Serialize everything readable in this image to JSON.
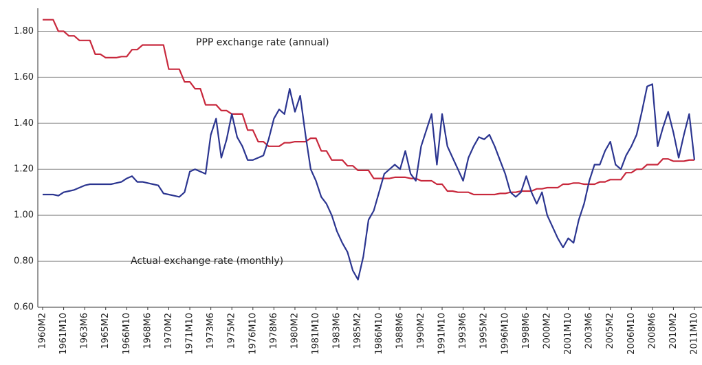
{
  "chart_data": {
    "type": "line",
    "annotations": [
      "PPP exchange rate (annual)",
      "Actual exchange rate (monthly)"
    ],
    "categories": [
      "1960M2",
      null,
      null,
      null,
      "1961M10",
      null,
      null,
      null,
      "1963M6",
      null,
      null,
      null,
      "1965M2",
      null,
      null,
      null,
      "1966M10",
      null,
      null,
      null,
      "1968M6",
      null,
      null,
      null,
      "1970M2",
      null,
      null,
      null,
      "1971M10",
      null,
      null,
      null,
      "1973M6",
      null,
      null,
      null,
      "1975M2",
      null,
      null,
      null,
      "1976M10",
      null,
      null,
      null,
      "1978M6",
      null,
      null,
      null,
      "1980M2",
      null,
      null,
      null,
      "1981M10",
      null,
      null,
      null,
      "1983M6",
      null,
      null,
      null,
      "1985M2",
      null,
      null,
      null,
      "1986M10",
      null,
      null,
      null,
      "1988M6",
      null,
      null,
      null,
      "1990M2",
      null,
      null,
      null,
      "1991M10",
      null,
      null,
      null,
      "1993M6",
      null,
      null,
      null,
      "1995M2",
      null,
      null,
      null,
      "1996M10",
      null,
      null,
      null,
      "1998M6",
      null,
      null,
      null,
      "2000M2",
      null,
      null,
      null,
      "2001M10",
      null,
      null,
      null,
      "2003M6",
      null,
      null,
      null,
      "2005M2",
      null,
      null,
      null,
      "2006M10",
      null,
      null,
      null,
      "2008M6",
      null,
      null,
      null,
      "2010M2",
      null,
      null,
      null,
      "2011M10"
    ],
    "series": [
      {
        "name": "PPP exchange rate (annual)",
        "color": "#c8283c",
        "values": [
          1.85,
          1.85,
          1.85,
          1.8,
          1.8,
          1.78,
          1.78,
          1.76,
          1.76,
          1.76,
          1.7,
          1.7,
          1.685,
          1.685,
          1.685,
          1.69,
          1.69,
          1.72,
          1.72,
          1.74,
          1.74,
          1.74,
          1.74,
          1.74,
          1.635,
          1.635,
          1.635,
          1.58,
          1.58,
          1.55,
          1.55,
          1.48,
          1.48,
          1.48,
          1.455,
          1.455,
          1.44,
          1.44,
          1.44,
          1.37,
          1.37,
          1.32,
          1.32,
          1.3,
          1.3,
          1.3,
          1.315,
          1.315,
          1.32,
          1.32,
          1.32,
          1.335,
          1.335,
          1.28,
          1.28,
          1.24,
          1.24,
          1.24,
          1.215,
          1.215,
          1.195,
          1.195,
          1.195,
          1.16,
          1.16,
          1.16,
          1.16,
          1.165,
          1.165,
          1.165,
          1.16,
          1.16,
          1.15,
          1.15,
          1.15,
          1.135,
          1.135,
          1.105,
          1.105,
          1.1,
          1.1,
          1.1,
          1.09,
          1.09,
          1.09,
          1.09,
          1.09,
          1.095,
          1.095,
          1.1,
          1.1,
          1.105,
          1.105,
          1.105,
          1.115,
          1.115,
          1.12,
          1.12,
          1.12,
          1.135,
          1.135,
          1.14,
          1.14,
          1.135,
          1.135,
          1.135,
          1.145,
          1.145,
          1.155,
          1.155,
          1.155,
          1.185,
          1.185,
          1.2,
          1.2,
          1.22,
          1.22,
          1.22,
          1.245,
          1.245,
          1.235,
          1.235,
          1.235,
          1.24,
          1.24
        ]
      },
      {
        "name": "Actual exchange rate (monthly)",
        "color": "#2b3590",
        "values": [
          1.09,
          1.09,
          1.09,
          1.085,
          1.1,
          1.105,
          1.11,
          1.12,
          1.13,
          1.135,
          1.135,
          1.135,
          1.135,
          1.135,
          1.14,
          1.145,
          1.16,
          1.17,
          1.145,
          1.145,
          1.14,
          1.135,
          1.13,
          1.095,
          1.09,
          1.085,
          1.08,
          1.1,
          1.19,
          1.2,
          1.19,
          1.18,
          1.35,
          1.42,
          1.25,
          1.33,
          1.44,
          1.34,
          1.3,
          1.24,
          1.24,
          1.25,
          1.26,
          1.33,
          1.42,
          1.46,
          1.44,
          1.55,
          1.45,
          1.52,
          1.35,
          1.2,
          1.15,
          1.08,
          1.05,
          1.0,
          0.93,
          0.88,
          0.84,
          0.76,
          0.72,
          0.82,
          0.98,
          1.02,
          1.1,
          1.18,
          1.2,
          1.22,
          1.2,
          1.28,
          1.18,
          1.15,
          1.3,
          1.37,
          1.44,
          1.22,
          1.44,
          1.3,
          1.25,
          1.2,
          1.15,
          1.25,
          1.3,
          1.34,
          1.33,
          1.35,
          1.3,
          1.24,
          1.18,
          1.1,
          1.08,
          1.1,
          1.17,
          1.1,
          1.05,
          1.1,
          1.0,
          0.95,
          0.9,
          0.86,
          0.9,
          0.88,
          0.98,
          1.05,
          1.15,
          1.22,
          1.22,
          1.28,
          1.32,
          1.22,
          1.2,
          1.26,
          1.3,
          1.35,
          1.45,
          1.56,
          1.57,
          1.3,
          1.38,
          1.45,
          1.36,
          1.25,
          1.35,
          1.44,
          1.24
        ]
      }
    ],
    "ylim": [
      0.6,
      1.9
    ],
    "yticks": [
      {
        "value": 0.6,
        "label": "0.60"
      },
      {
        "value": 0.8,
        "label": "0.80"
      },
      {
        "value": 1.0,
        "label": "1.00"
      },
      {
        "value": 1.2,
        "label": "1.20"
      },
      {
        "value": 1.4,
        "label": "1.40"
      },
      {
        "value": 1.6,
        "label": "1.60"
      },
      {
        "value": 1.8,
        "label": "1.80"
      }
    ],
    "grid": true
  }
}
